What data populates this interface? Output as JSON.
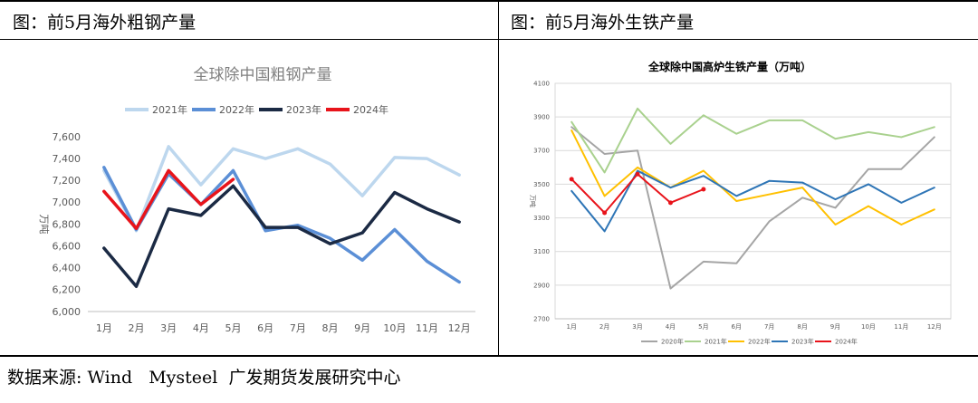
{
  "panels": {
    "left_title": "图：前5月海外粗钢产量",
    "right_title": "图：前5月海外生铁产量"
  },
  "footer": {
    "source": "数据来源: Wind   Mysteel  广发期货发展研究中心"
  },
  "chart_data": [
    {
      "type": "line",
      "title": "全球除中国粗钢产量",
      "ylabel": "万吨",
      "xlabel": "",
      "categories": [
        "1月",
        "2月",
        "3月",
        "4月",
        "5月",
        "6月",
        "7月",
        "8月",
        "9月",
        "10月",
        "11月",
        "12月"
      ],
      "ylim": [
        6000,
        7600
      ],
      "yticks": [
        6000,
        6200,
        6400,
        6600,
        6800,
        7000,
        7200,
        7400,
        7600
      ],
      "ytick_labels": [
        "6,000",
        "6,200",
        "6,400",
        "6,600",
        "6,800",
        "7,000",
        "7,200",
        "7,400",
        "7,600"
      ],
      "grid": false,
      "legend_position": "top",
      "series": [
        {
          "name": "2021年",
          "color": "#bdd7ee",
          "width": 3.5,
          "values": [
            7290,
            6740,
            7510,
            7160,
            7490,
            7400,
            7490,
            7350,
            7060,
            7410,
            7400,
            7250
          ]
        },
        {
          "name": "2022年",
          "color": "#5b8fd6",
          "width": 3.5,
          "values": [
            7320,
            6750,
            7260,
            6980,
            7290,
            6740,
            6790,
            6670,
            6470,
            6750,
            6460,
            6270
          ]
        },
        {
          "name": "2023年",
          "color": "#1b2a44",
          "width": 3.5,
          "values": [
            6580,
            6230,
            6940,
            6880,
            7150,
            6770,
            6770,
            6620,
            6720,
            7090,
            6940,
            6820
          ]
        },
        {
          "name": "2024年",
          "color": "#e8141b",
          "width": 3.5,
          "values": [
            7100,
            6760,
            7290,
            6980,
            7210,
            null,
            null,
            null,
            null,
            null,
            null,
            null
          ]
        }
      ]
    },
    {
      "type": "line",
      "title": "全球除中国高炉生铁产量（万吨）",
      "ylabel": "万吨",
      "xlabel": "",
      "categories": [
        "1月",
        "2月",
        "3月",
        "4月",
        "5月",
        "6月",
        "7月",
        "8月",
        "9月",
        "10月",
        "11月",
        "12月"
      ],
      "ylim": [
        2700,
        4100
      ],
      "yticks": [
        2700,
        2900,
        3100,
        3300,
        3500,
        3700,
        3900,
        4100
      ],
      "ytick_labels": [
        "2700",
        "2900",
        "3100",
        "3300",
        "3500",
        "3700",
        "3900",
        "4100"
      ],
      "grid": true,
      "legend_position": "bottom",
      "series": [
        {
          "name": "2020年",
          "color": "#a5a5a5",
          "width": 2,
          "values": [
            3840,
            3680,
            3700,
            2880,
            3040,
            3030,
            3280,
            3420,
            3360,
            3590,
            3590,
            3780
          ]
        },
        {
          "name": "2021年",
          "color": "#a9d18e",
          "width": 2,
          "values": [
            3870,
            3570,
            3950,
            3740,
            3910,
            3800,
            3880,
            3880,
            3770,
            3810,
            3780,
            3840
          ]
        },
        {
          "name": "2022年",
          "color": "#ffc000",
          "width": 2,
          "values": [
            3820,
            3430,
            3600,
            3480,
            3580,
            3400,
            3440,
            3480,
            3260,
            3370,
            3260,
            3350
          ]
        },
        {
          "name": "2023年",
          "color": "#2e75b6",
          "width": 2,
          "values": [
            3460,
            3220,
            3580,
            3480,
            3550,
            3430,
            3520,
            3510,
            3410,
            3500,
            3390,
            3480
          ]
        },
        {
          "name": "2024年",
          "color": "#e8141b",
          "width": 2,
          "markers": true,
          "values": [
            3530,
            3330,
            3560,
            3390,
            3470,
            null,
            null,
            null,
            null,
            null,
            null,
            null
          ]
        }
      ]
    }
  ]
}
